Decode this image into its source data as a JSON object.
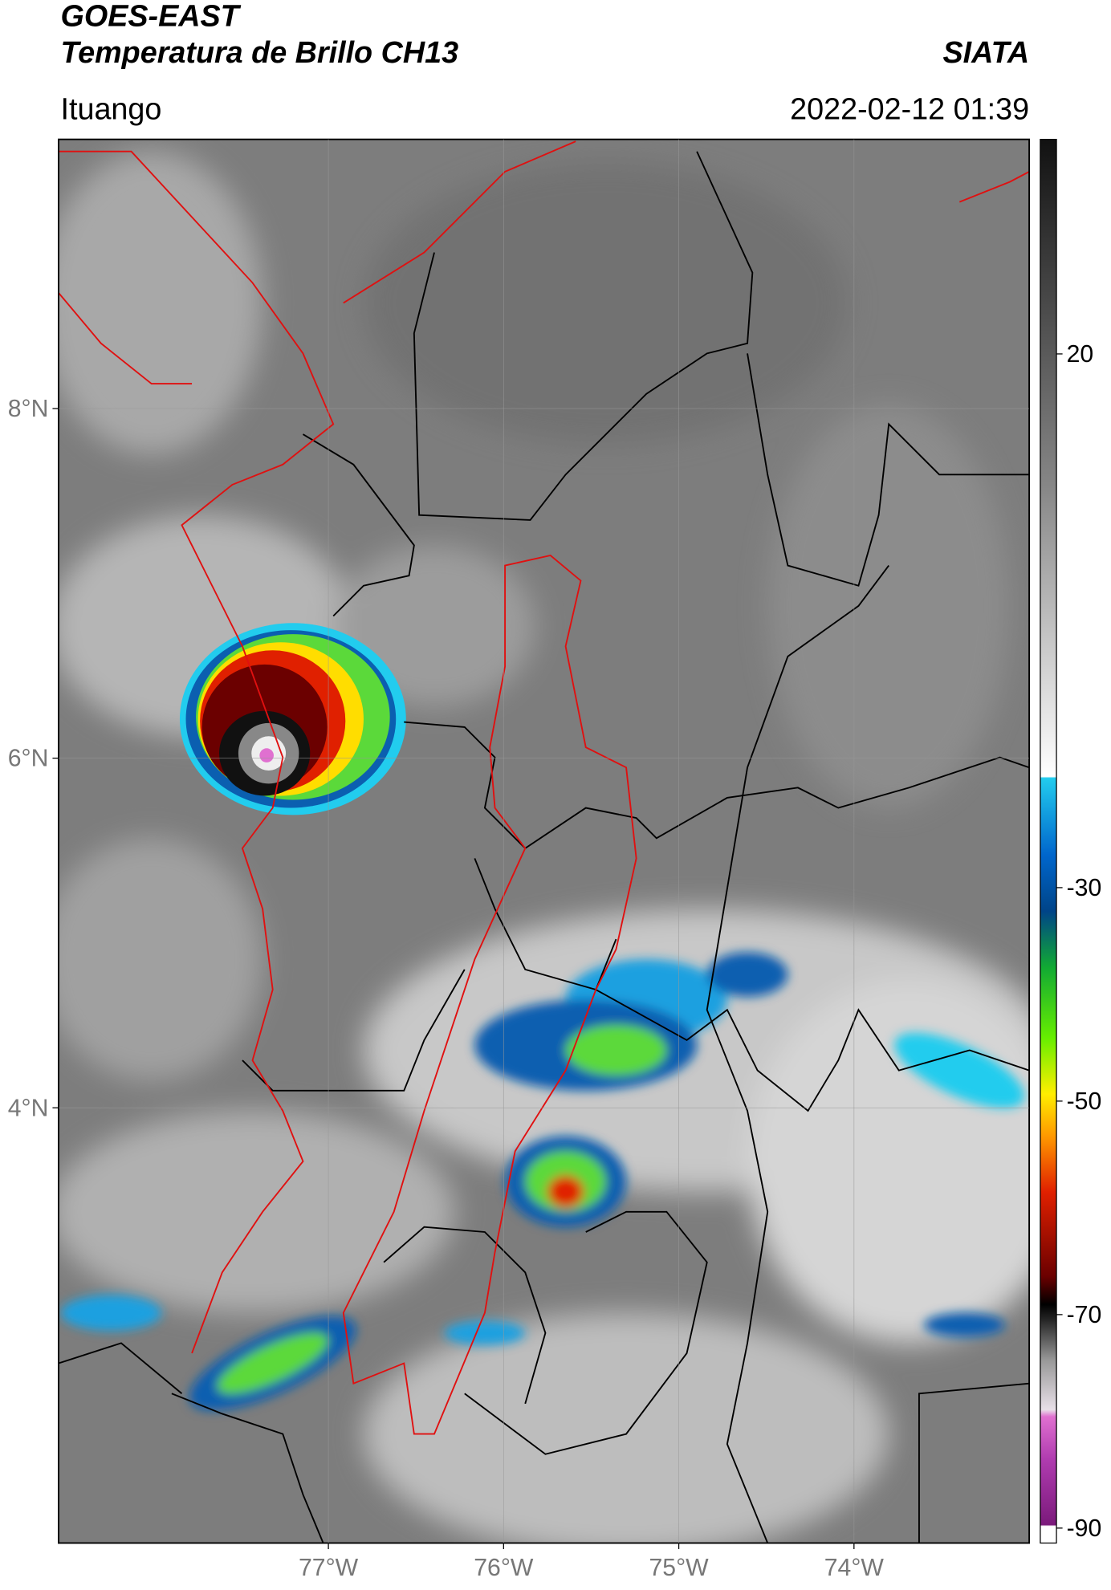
{
  "header": {
    "title": "GOES-EAST",
    "subtitle": "Temperatura de Brillo CH13",
    "agency": "SIATA",
    "location": "Ituango",
    "datetime": "2022-02-12 01:39"
  },
  "map": {
    "xlim": [
      -78.54,
      -73.0
    ],
    "ylim": [
      1.51,
      9.54
    ],
    "xticks": [
      {
        "value": -77,
        "label": "77°W"
      },
      {
        "value": -76,
        "label": "76°W"
      },
      {
        "value": -75,
        "label": "75°W"
      },
      {
        "value": -74,
        "label": "74°W"
      }
    ],
    "yticks": [
      {
        "value": 8,
        "label": "8°N"
      },
      {
        "value": 6,
        "label": "6°N"
      },
      {
        "value": 4,
        "label": "4°N"
      }
    ],
    "grid": true
  },
  "colorbar": {
    "lim": [
      -91.4,
      40.1
    ],
    "ticks": [
      20,
      -30,
      -50,
      -70,
      -90
    ]
  }
}
